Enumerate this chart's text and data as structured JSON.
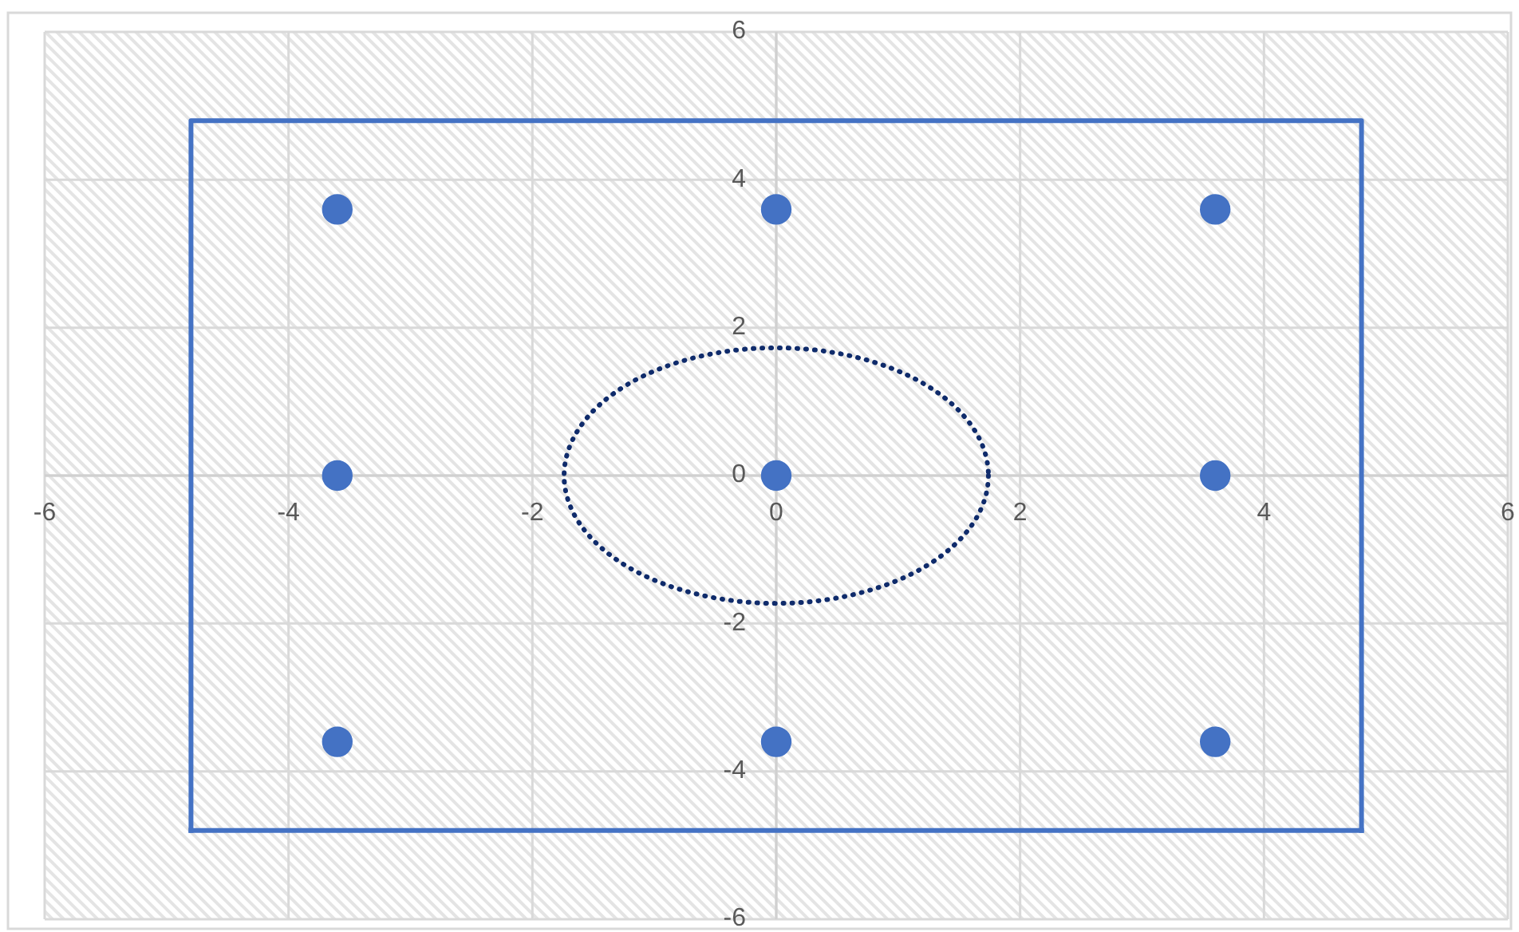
{
  "chart_data": {
    "type": "scatter",
    "xlim": [
      -6,
      6
    ],
    "ylim": [
      -6,
      6
    ],
    "xticks": [
      -6,
      -4,
      -2,
      0,
      2,
      4,
      6
    ],
    "yticks": [
      -6,
      -4,
      -2,
      0,
      2,
      4,
      6
    ],
    "grid": true,
    "series": [
      {
        "type": "line",
        "color": "#4472c4",
        "line_style": "solid",
        "x": [
          -4.8,
          -4.8,
          4.8,
          4.8
        ],
        "values": [
          -4.8,
          4.8,
          4.8,
          -4.8
        ]
      },
      {
        "type": "line",
        "color": "#4472c4",
        "line_style": "solid",
        "x": [
          -4.8,
          4.8
        ],
        "values": [
          -4.8,
          -4.8
        ]
      },
      {
        "color": "#4472c4",
        "marker": "circle",
        "x": [
          -3.6,
          0,
          3.6,
          -3.6,
          0,
          3.6,
          -3.6,
          0,
          3.6
        ],
        "values": [
          3.6,
          3.6,
          3.6,
          0,
          0,
          0,
          -3.6,
          -3.6,
          -3.6
        ]
      }
    ]
  }
}
